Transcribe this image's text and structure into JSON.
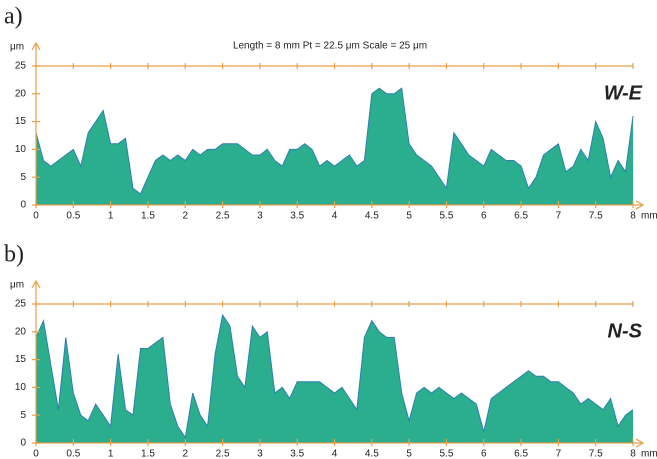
{
  "chart_data": [
    {
      "type": "area",
      "panel": "a)",
      "subtitle": "Length = 8 mm  Pt = 22.5 μm  Scale = 25 μm",
      "annotation": "W-E",
      "x_unit": "mm",
      "y_unit": "μm",
      "color": "#2aae8e",
      "line_color": "#2f7fb0",
      "xlim": [
        0,
        8
      ],
      "ylim": [
        0,
        25
      ],
      "xticks": [
        0,
        0.5,
        1,
        1.5,
        2,
        2.5,
        3,
        3.5,
        4,
        4.5,
        5,
        5.5,
        6,
        6.5,
        7,
        7.5,
        8
      ],
      "yticks": [
        0,
        5,
        10,
        15,
        20,
        25
      ],
      "x": [
        0,
        0.1,
        0.2,
        0.3,
        0.4,
        0.5,
        0.6,
        0.7,
        0.8,
        0.9,
        1,
        1.1,
        1.2,
        1.3,
        1.4,
        1.5,
        1.6,
        1.7,
        1.8,
        1.9,
        2,
        2.1,
        2.2,
        2.3,
        2.4,
        2.5,
        2.6,
        2.7,
        2.8,
        2.9,
        3,
        3.1,
        3.2,
        3.3,
        3.4,
        3.5,
        3.6,
        3.7,
        3.8,
        3.9,
        4,
        4.1,
        4.2,
        4.3,
        4.4,
        4.5,
        4.6,
        4.7,
        4.8,
        4.9,
        5,
        5.1,
        5.2,
        5.3,
        5.4,
        5.5,
        5.6,
        5.7,
        5.8,
        5.9,
        6,
        6.1,
        6.2,
        6.3,
        6.4,
        6.5,
        6.6,
        6.7,
        6.8,
        6.9,
        7,
        7.1,
        7.2,
        7.3,
        7.4,
        7.5,
        7.6,
        7.7,
        7.8,
        7.9,
        8
      ],
      "values": [
        13,
        8,
        7,
        8,
        9,
        10,
        7,
        13,
        15,
        17,
        11,
        11,
        12,
        3,
        2,
        5,
        8,
        9,
        8,
        9,
        8,
        10,
        9,
        10,
        10,
        11,
        11,
        11,
        10,
        9,
        9,
        10,
        8,
        7,
        10,
        10,
        11,
        10,
        7,
        8,
        7,
        8,
        9,
        7,
        8,
        20,
        21,
        20,
        20,
        21,
        11,
        9,
        8,
        7,
        5,
        3,
        13,
        11,
        9,
        8,
        7,
        10,
        9,
        8,
        8,
        7,
        3,
        5,
        9,
        10,
        11,
        6,
        7,
        10,
        8,
        15,
        12,
        5,
        8,
        6,
        16
      ]
    },
    {
      "type": "area",
      "panel": "b)",
      "annotation": "N-S",
      "x_unit": "mm",
      "y_unit": "μm",
      "color": "#2aae8e",
      "line_color": "#2f7fb0",
      "xlim": [
        0,
        8
      ],
      "ylim": [
        0,
        25
      ],
      "xticks": [
        0,
        0.5,
        1,
        1.5,
        2,
        2.5,
        3,
        3.5,
        4,
        4.5,
        5,
        5.5,
        6,
        6.5,
        7,
        7.5,
        8
      ],
      "yticks": [
        0,
        5,
        10,
        15,
        20,
        25
      ],
      "x": [
        0,
        0.1,
        0.2,
        0.3,
        0.4,
        0.5,
        0.6,
        0.7,
        0.8,
        0.9,
        1,
        1.1,
        1.2,
        1.3,
        1.4,
        1.5,
        1.6,
        1.7,
        1.8,
        1.9,
        2,
        2.1,
        2.2,
        2.3,
        2.4,
        2.5,
        2.6,
        2.7,
        2.8,
        2.9,
        3,
        3.1,
        3.2,
        3.3,
        3.4,
        3.5,
        3.6,
        3.7,
        3.8,
        3.9,
        4,
        4.1,
        4.2,
        4.3,
        4.4,
        4.5,
        4.6,
        4.7,
        4.8,
        4.9,
        5,
        5.1,
        5.2,
        5.3,
        5.4,
        5.5,
        5.6,
        5.7,
        5.8,
        5.9,
        6,
        6.1,
        6.2,
        6.3,
        6.4,
        6.5,
        6.6,
        6.7,
        6.8,
        6.9,
        7,
        7.1,
        7.2,
        7.3,
        7.4,
        7.5,
        7.6,
        7.7,
        7.8,
        7.9,
        8
      ],
      "values": [
        19,
        22,
        14,
        6,
        19,
        9,
        5,
        4,
        7,
        5,
        3,
        16,
        6,
        5,
        17,
        17,
        18,
        19,
        7,
        3,
        1,
        9,
        5,
        3,
        16,
        23,
        21,
        12,
        10,
        21,
        19,
        20,
        9,
        10,
        8,
        11,
        11,
        11,
        11,
        10,
        9,
        10,
        8,
        6,
        19,
        22,
        20,
        19,
        19,
        9,
        4,
        9,
        10,
        9,
        10,
        9,
        8,
        9,
        8,
        7,
        2,
        8,
        9,
        10,
        11,
        12,
        13,
        12,
        12,
        11,
        11,
        10,
        9,
        7,
        8,
        7,
        6,
        8,
        3,
        5,
        6
      ]
    }
  ]
}
